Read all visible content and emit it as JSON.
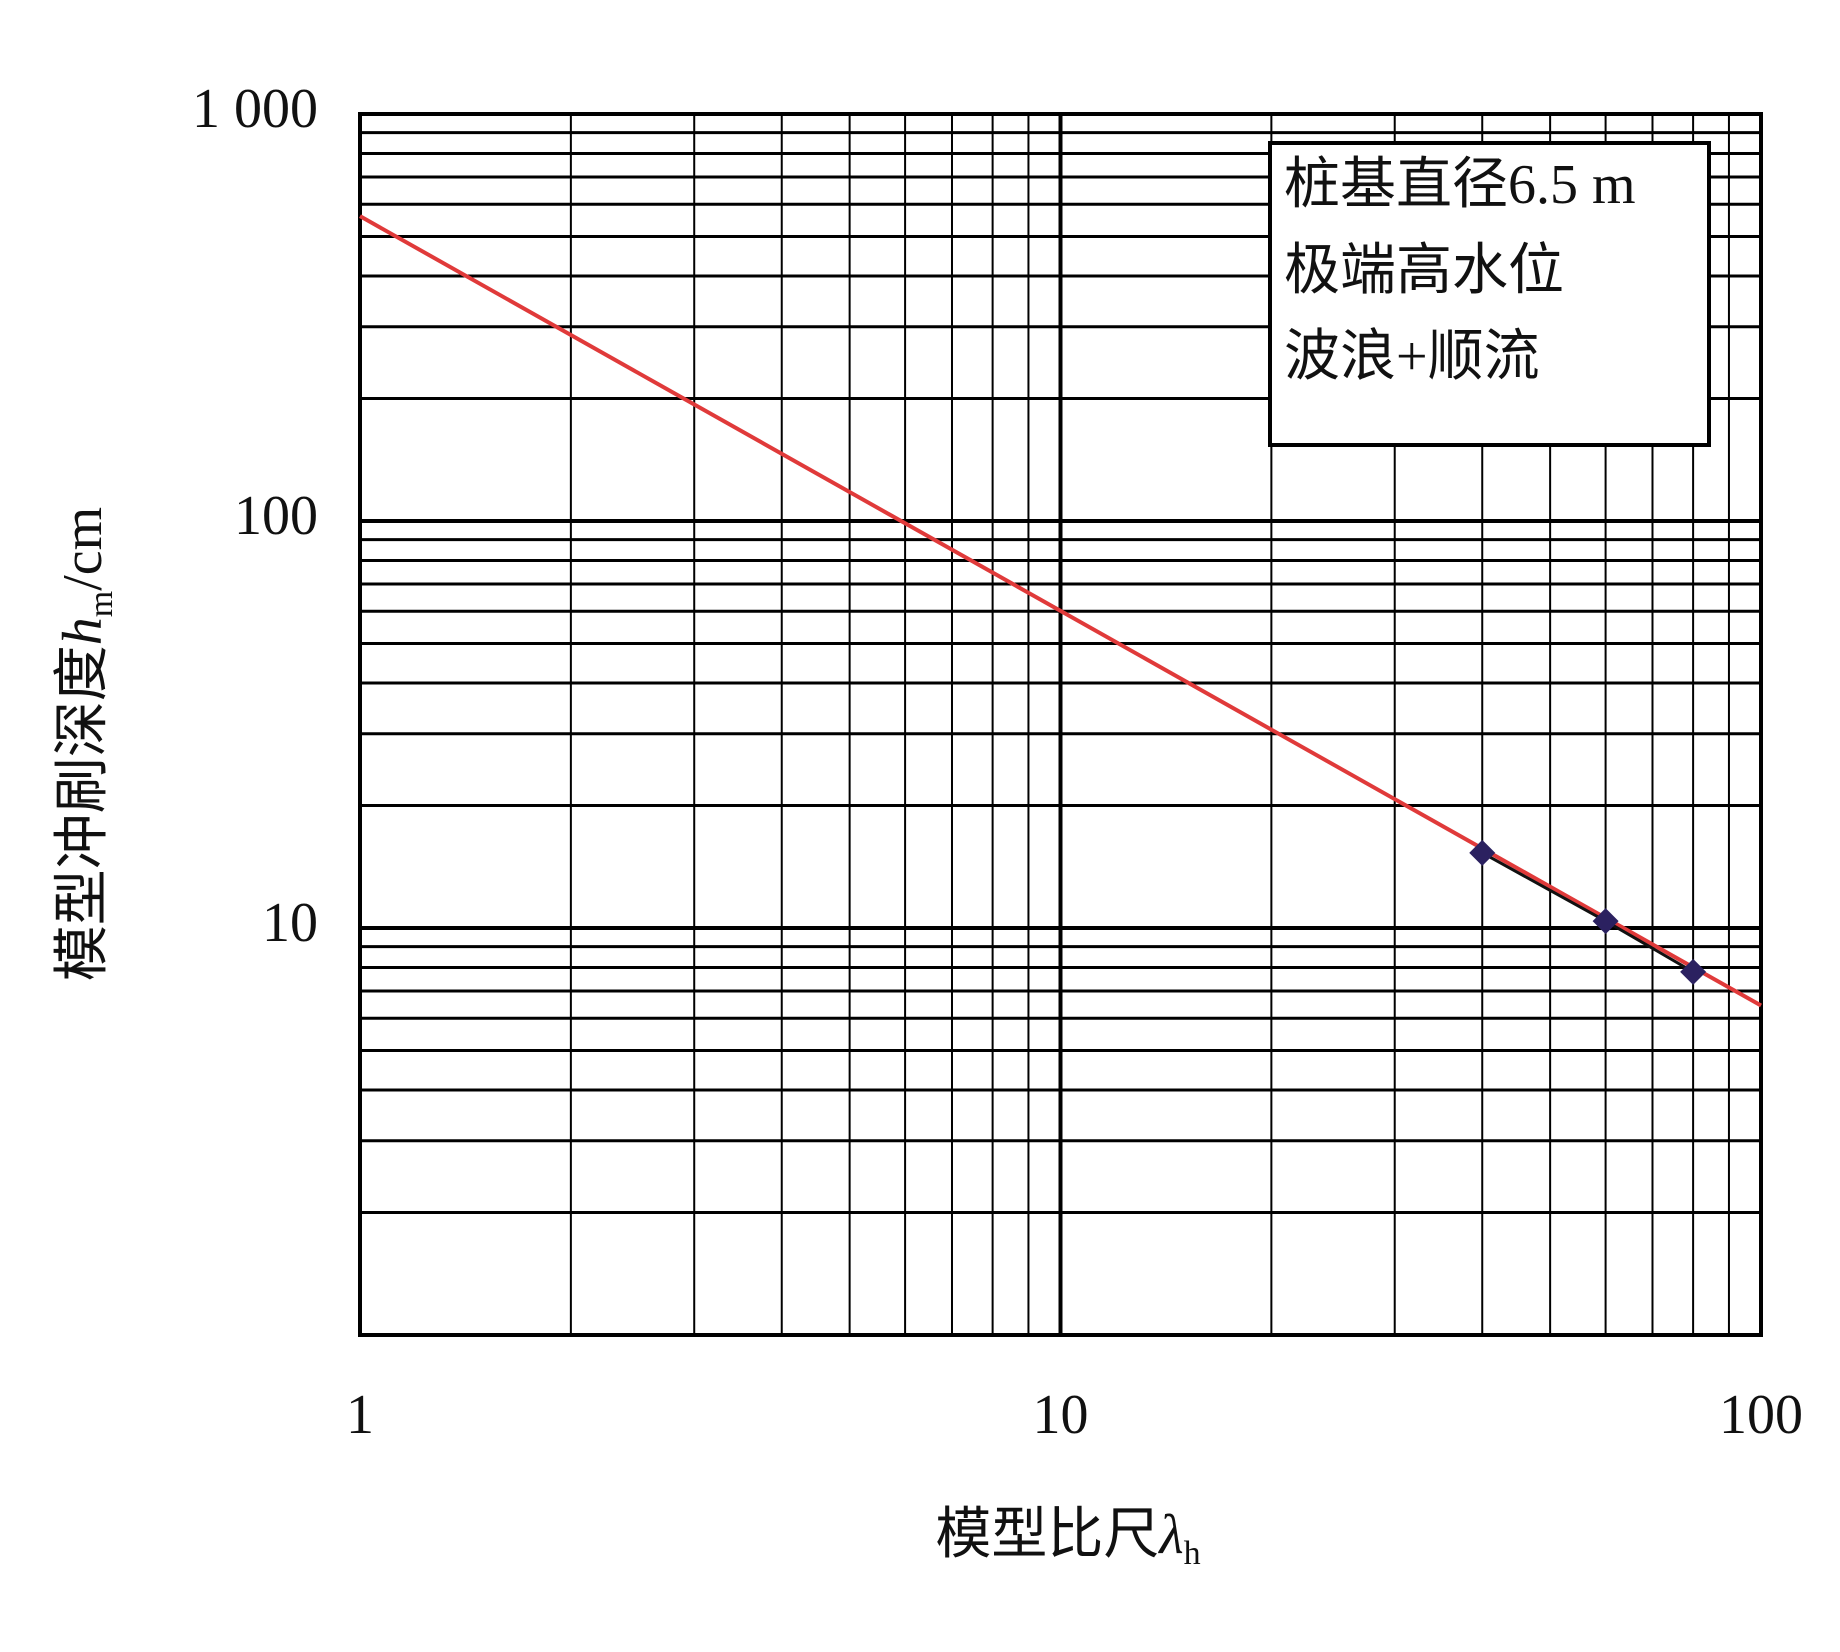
{
  "chart_data": {
    "type": "line",
    "x_label": {
      "text": "模型比尺",
      "var": "λ",
      "sub": "h"
    },
    "y_label": {
      "text": "模型冲刷深度",
      "var": "h",
      "sub": "m",
      "unit": "/cm"
    },
    "annotation": [
      "桩基直径6.5 m",
      "极端高水位",
      "波浪+顺流"
    ],
    "log_x": true,
    "log_y": true,
    "grid": true,
    "xlim": [
      1,
      100
    ],
    "xticks": [
      1,
      10,
      100
    ],
    "ylim": [
      1,
      1000
    ],
    "yticks": [
      {
        "value": 1000,
        "label": "1 000"
      },
      100,
      10
    ],
    "series": [
      {
        "color": "#e03a3a",
        "x": [
          1,
          100
        ],
        "values": [
          561,
          6.45
        ]
      },
      {
        "color": "#2b2160",
        "line_color": "#111111",
        "marker": "diamond",
        "x": [
          40,
          60,
          80
        ],
        "values": [
          15.3,
          10.4,
          7.8
        ]
      }
    ]
  }
}
